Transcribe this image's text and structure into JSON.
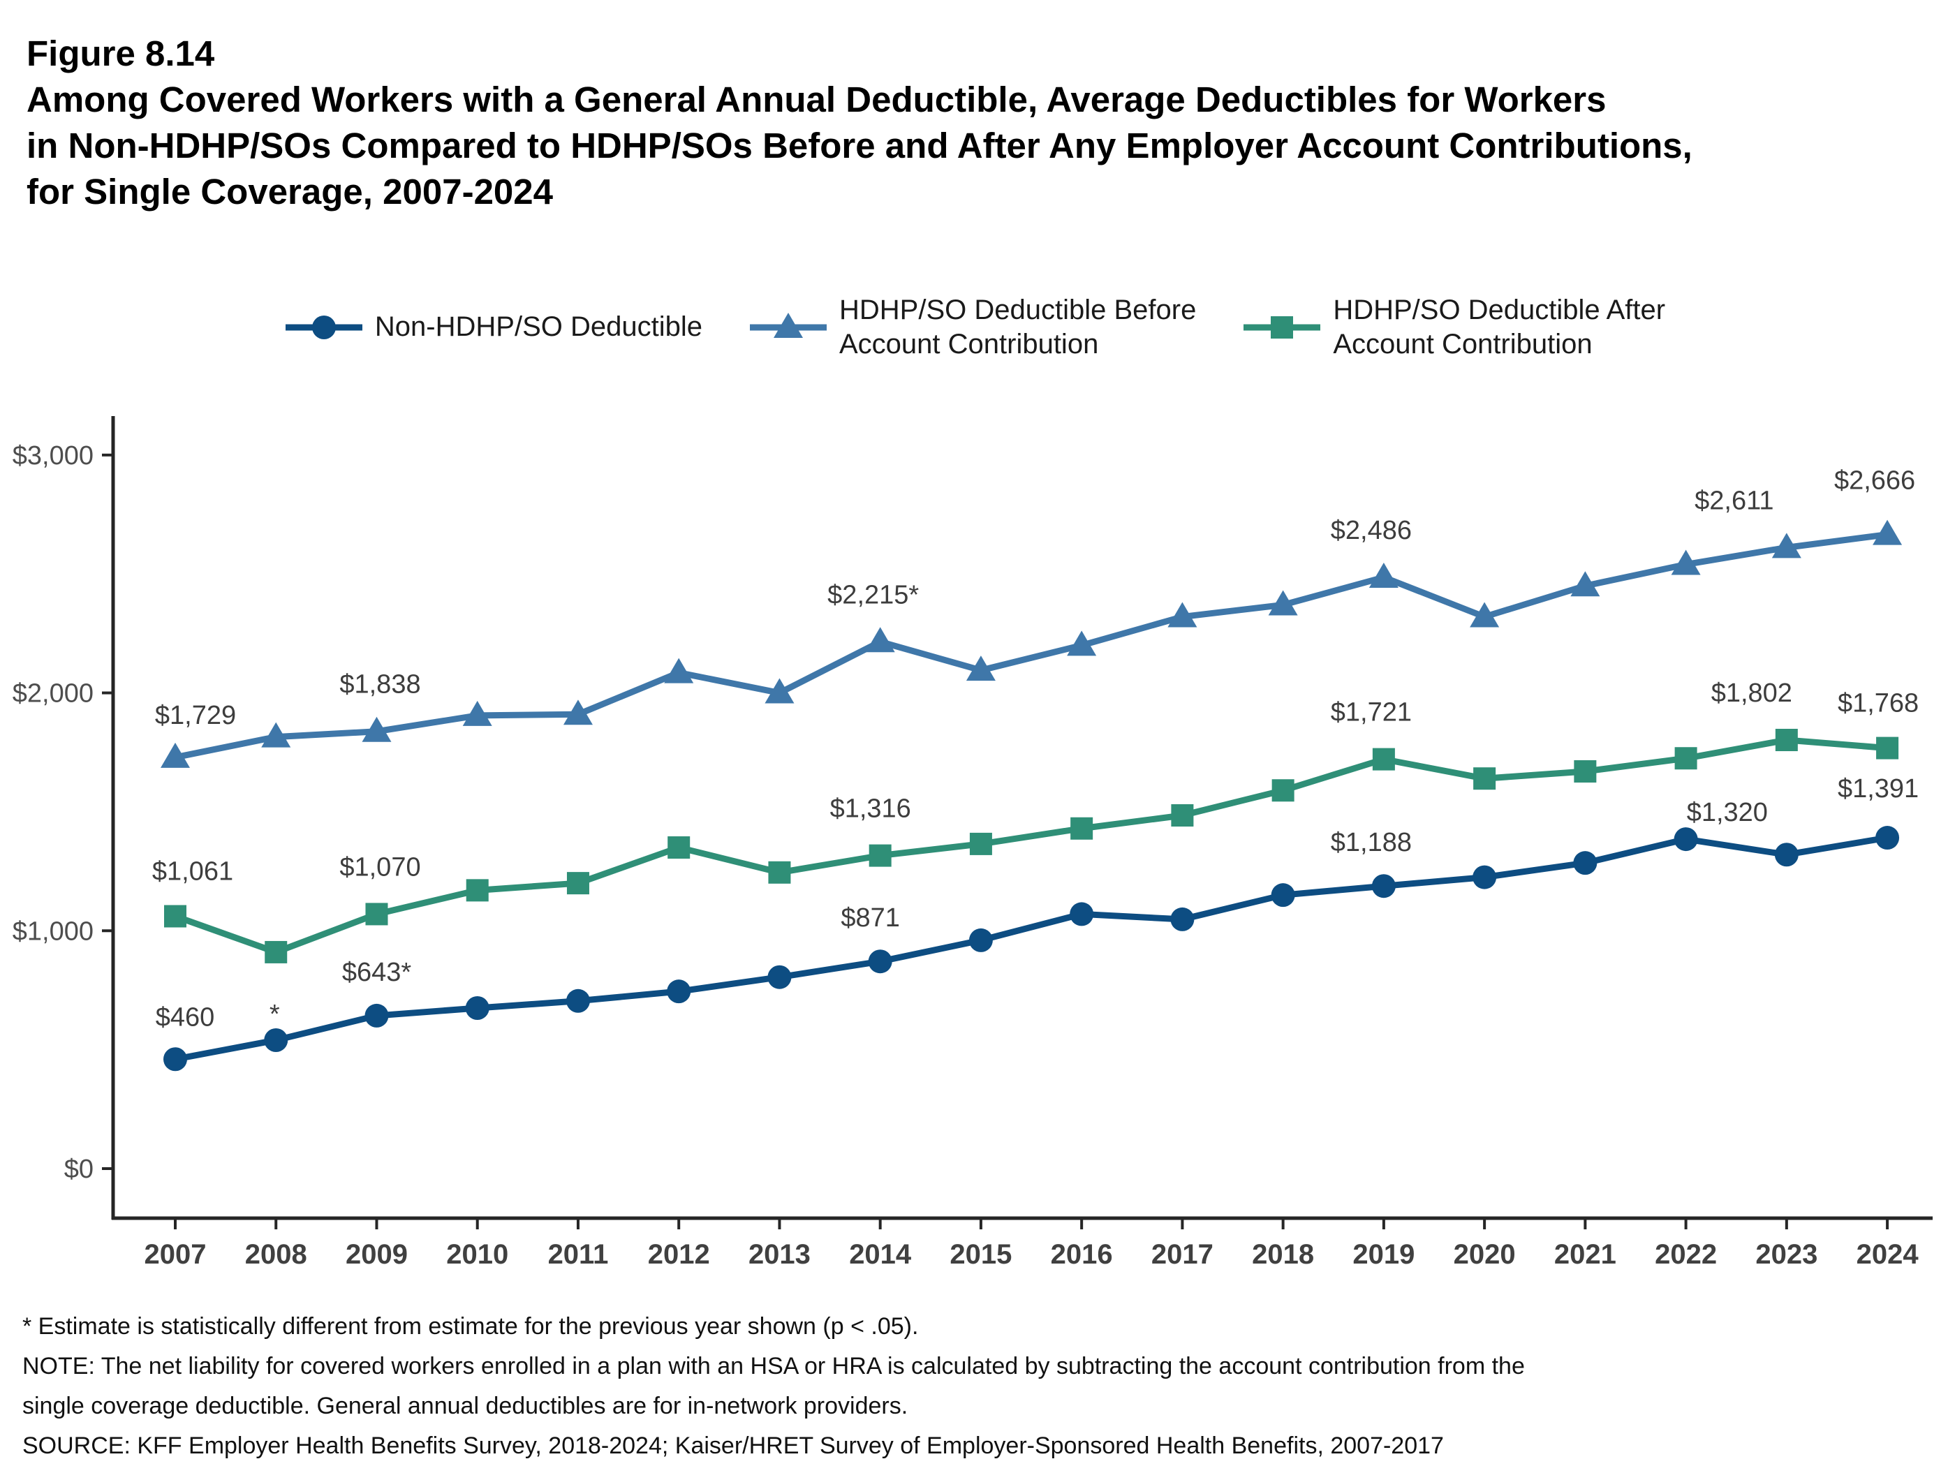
{
  "header": {
    "figure_label": "Figure 8.14",
    "title": "Among Covered Workers with a General Annual Deductible, Average Deductibles for Workers\nin Non-HDHP/SOs Compared to HDHP/SOs Before and After Any Employer Account Contributions,\nfor Single Coverage, 2007-2024"
  },
  "chart_data": {
    "type": "line",
    "title": "Average Deductibles for Workers in Non-HDHP/SOs Compared to HDHP/SOs Before and After Any Employer Account Contributions, for Single Coverage, 2007-2024",
    "xlabel": "",
    "ylabel": "",
    "grid": false,
    "legend_position": "top",
    "ylim": [
      0,
      3100
    ],
    "x_years": [
      2007,
      2008,
      2009,
      2010,
      2011,
      2012,
      2013,
      2014,
      2015,
      2016,
      2017,
      2018,
      2019,
      2020,
      2021,
      2022,
      2023,
      2024
    ],
    "y_axis": {
      "ticks": [
        {
          "label": "$0",
          "value": 0
        },
        {
          "label": "$1,000",
          "value": 1000
        },
        {
          "label": "$2,000",
          "value": 2000
        },
        {
          "label": "$3,000",
          "value": 3000
        }
      ]
    },
    "series": [
      {
        "name": "Non-HDHP/SO Deductible",
        "legend_label": "Non-HDHP/SO Deductible",
        "color": "#0d4d82",
        "marker": "circle",
        "values": [
          460,
          540,
          643,
          675,
          705,
          745,
          805,
          871,
          960,
          1070,
          1048,
          1150,
          1188,
          1225,
          1285,
          1385,
          1320,
          1391
        ],
        "labels": [
          {
            "year": 2007,
            "text": "$460",
            "dx": 14,
            "dy": -48
          },
          {
            "year": 2008,
            "text": "*",
            "dx": -2,
            "dy": -25
          },
          {
            "year": 2009,
            "text": "$643*",
            "dx": 0,
            "dy": -50
          },
          {
            "year": 2014,
            "text": "$871",
            "dx": -14,
            "dy": -50
          },
          {
            "year": 2019,
            "text": "$1,188",
            "dx": -18,
            "dy": -50
          },
          {
            "year": 2023,
            "text": "$1,320",
            "dx": -85,
            "dy": -48
          },
          {
            "year": 2024,
            "text": "$1,391",
            "dx": -13,
            "dy": -58
          }
        ]
      },
      {
        "name": "HDHP/SO Deductible Before Account Contribution",
        "legend_label": "HDHP/SO Deductible Before\nAccount Contribution",
        "color": "#3f77a9",
        "marker": "triangle",
        "values": [
          1729,
          1815,
          1838,
          1905,
          1910,
          2085,
          2000,
          2215,
          2095,
          2200,
          2320,
          2370,
          2486,
          2320,
          2450,
          2540,
          2611,
          2666
        ],
        "labels": [
          {
            "year": 2007,
            "text": "$1,729",
            "dx": 29,
            "dy": -48
          },
          {
            "year": 2009,
            "text": "$1,838",
            "dx": 5,
            "dy": -55
          },
          {
            "year": 2014,
            "text": "$2,215*",
            "dx": -10,
            "dy": -55
          },
          {
            "year": 2019,
            "text": "$2,486",
            "dx": -18,
            "dy": -55
          },
          {
            "year": 2023,
            "text": "$2,611",
            "dx": -75,
            "dy": -55
          },
          {
            "year": 2024,
            "text": "$2,666",
            "dx": -18,
            "dy": -65
          }
        ]
      },
      {
        "name": "HDHP/SO Deductible After Account Contribution",
        "legend_label": "HDHP/SO Deductible After\nAccount Contribution",
        "color": "#2f8f77",
        "marker": "square",
        "values": [
          1061,
          910,
          1070,
          1170,
          1200,
          1350,
          1245,
          1316,
          1365,
          1430,
          1485,
          1590,
          1721,
          1640,
          1670,
          1725,
          1802,
          1768
        ],
        "labels": [
          {
            "year": 2007,
            "text": "$1,061",
            "dx": 25,
            "dy": -52
          },
          {
            "year": 2009,
            "text": "$1,070",
            "dx": 5,
            "dy": -55
          },
          {
            "year": 2014,
            "text": "$1,316",
            "dx": -14,
            "dy": -55
          },
          {
            "year": 2019,
            "text": "$1,721",
            "dx": -18,
            "dy": -55
          },
          {
            "year": 2023,
            "text": "$1,802",
            "dx": -50,
            "dy": -55
          },
          {
            "year": 2024,
            "text": "$1,768",
            "dx": -13,
            "dy": -52
          }
        ]
      }
    ]
  },
  "footnotes": [
    "* Estimate is statistically different from estimate for the previous year shown (p < .05).",
    "NOTE: The net liability for covered workers enrolled in a plan with an HSA or HRA is calculated by subtracting the account contribution from the",
    "single coverage deductible. General annual deductibles are for in-network providers.",
    "SOURCE: KFF Employer Health Benefits Survey, 2018-2024; Kaiser/HRET Survey of Employer-Sponsored Health Benefits, 2007-2017"
  ]
}
